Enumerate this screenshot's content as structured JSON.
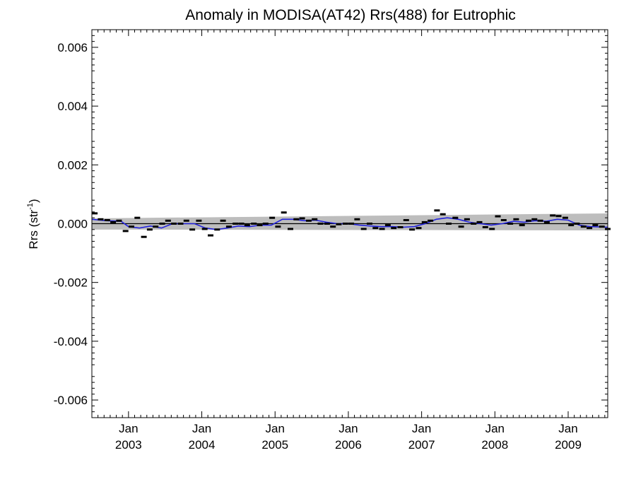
{
  "chart_data": {
    "type": "scatter",
    "title": "Anomaly in MODISA(AT42) Rrs(488) for Eutrophic",
    "ylabel": {
      "text": "Rrs (str",
      "superscript": "-1",
      "suffix": ")"
    },
    "xlabel": "",
    "xlim": [
      2002.5,
      2009.54
    ],
    "ylim": [
      -0.0066,
      0.0066
    ],
    "y_ticks": [
      "0.006",
      "0.004",
      "0.002",
      "0.000",
      "-0.002",
      "-0.004",
      "-0.006"
    ],
    "y_tick_values": [
      0.006,
      0.004,
      0.002,
      0.0,
      -0.002,
      -0.004,
      -0.006
    ],
    "x_ticks": [
      {
        "month": "Jan",
        "year": "2003",
        "value": 2003.0
      },
      {
        "month": "Jan",
        "year": "2004",
        "value": 2004.0
      },
      {
        "month": "Jan",
        "year": "2005",
        "value": 2005.0
      },
      {
        "month": "Jan",
        "year": "2006",
        "value": 2006.0
      },
      {
        "month": "Jan",
        "year": "2007",
        "value": 2007.0
      },
      {
        "month": "Jan",
        "year": "2008",
        "value": 2008.0
      },
      {
        "month": "Jan",
        "year": "2009",
        "value": 2009.0
      }
    ],
    "grid": false,
    "legend": "none",
    "colors": {
      "points": "#000000",
      "smooth_line": "#2222dd",
      "trend_band": "#bdbdbd",
      "zero_line": "#000000"
    },
    "series": [
      {
        "kind": "monthly_anomaly_points",
        "x": [
          2002.54,
          2002.62,
          2002.71,
          2002.79,
          2002.87,
          2002.96,
          2003.04,
          2003.12,
          2003.21,
          2003.29,
          2003.37,
          2003.46,
          2003.54,
          2003.62,
          2003.71,
          2003.79,
          2003.87,
          2003.96,
          2004.04,
          2004.12,
          2004.21,
          2004.29,
          2004.37,
          2004.46,
          2004.54,
          2004.62,
          2004.71,
          2004.79,
          2004.87,
          2004.96,
          2005.04,
          2005.12,
          2005.21,
          2005.29,
          2005.37,
          2005.46,
          2005.54,
          2005.62,
          2005.71,
          2005.79,
          2005.87,
          2005.96,
          2006.04,
          2006.12,
          2006.21,
          2006.29,
          2006.37,
          2006.46,
          2006.54,
          2006.62,
          2006.71,
          2006.79,
          2006.87,
          2006.96,
          2007.04,
          2007.12,
          2007.21,
          2007.29,
          2007.37,
          2007.46,
          2007.54,
          2007.62,
          2007.71,
          2007.79,
          2007.87,
          2007.96,
          2008.04,
          2008.12,
          2008.21,
          2008.29,
          2008.37,
          2008.46,
          2008.54,
          2008.62,
          2008.71,
          2008.79,
          2008.87,
          2008.96,
          2009.04,
          2009.12,
          2009.21,
          2009.29,
          2009.37,
          2009.46,
          2009.54
        ],
        "y": [
          0.00035,
          0.00015,
          0.00012,
          5e-05,
          0.0001,
          -0.00025,
          -0.0001,
          0.0002,
          -0.00045,
          -0.0002,
          -0.0001,
          0.0,
          0.0001,
          0.0,
          0.0,
          0.0001,
          -0.0002,
          0.0001,
          -0.00018,
          -0.0004,
          -0.0002,
          0.0001,
          -0.0001,
          0.0,
          0.0,
          -5e-05,
          0.0,
          -5e-05,
          0.0,
          0.0002,
          -0.0001,
          0.00038,
          -0.00018,
          0.00015,
          0.00018,
          0.0001,
          0.00015,
          0.0,
          0.0,
          -0.0001,
          -2e-05,
          0.0,
          0.0,
          0.00015,
          -0.00018,
          0.0,
          -0.00015,
          -0.00018,
          -5e-05,
          -0.00015,
          -0.00012,
          0.00012,
          -0.0002,
          -0.00015,
          5e-05,
          0.0001,
          0.00045,
          0.00032,
          0.0,
          0.0002,
          -0.0001,
          0.00015,
          0.0,
          5e-05,
          -0.00012,
          -0.00018,
          0.00025,
          0.00012,
          0.0,
          0.00015,
          -5e-05,
          0.0001,
          0.00015,
          0.0001,
          5e-05,
          0.00028,
          0.00026,
          0.0002,
          -5e-05,
          0.0,
          -0.0001,
          -0.00015,
          -5e-05,
          -0.0001,
          -0.00018
        ]
      },
      {
        "kind": "smoothed_line",
        "x": [
          2002.5,
          2002.7,
          2002.9,
          2003.0,
          2003.15,
          2003.3,
          2003.45,
          2003.6,
          2003.75,
          2003.9,
          2004.05,
          2004.2,
          2004.35,
          2004.5,
          2004.65,
          2004.8,
          2004.95,
          2005.1,
          2005.25,
          2005.4,
          2005.55,
          2005.7,
          2005.85,
          2006.0,
          2006.15,
          2006.3,
          2006.45,
          2006.6,
          2006.75,
          2006.9,
          2007.05,
          2007.2,
          2007.35,
          2007.5,
          2007.65,
          2007.8,
          2007.95,
          2008.1,
          2008.25,
          2008.4,
          2008.55,
          2008.7,
          2008.85,
          2009.0,
          2009.15,
          2009.3,
          2009.54
        ],
        "y": [
          0.00015,
          0.0001,
          8e-05,
          -0.0001,
          -0.00015,
          -8e-05,
          -0.00015,
          0.0,
          0.0,
          0.0,
          -0.00015,
          -0.0002,
          -0.00015,
          -8e-05,
          -0.0001,
          -5e-05,
          -5e-05,
          0.00015,
          0.00015,
          0.0001,
          0.00012,
          5e-05,
          0.0,
          0.0,
          -5e-05,
          -8e-05,
          -0.0001,
          -0.0001,
          -0.00012,
          -0.0001,
          0.0,
          0.00015,
          0.0002,
          0.00015,
          5e-05,
          0.0,
          -5e-05,
          0.0,
          8e-05,
          5e-05,
          0.0001,
          8e-05,
          0.00015,
          0.00012,
          -5e-05,
          -0.0001,
          -0.00012
        ]
      },
      {
        "kind": "trend_band",
        "x": [
          2002.5,
          2009.54
        ],
        "upper": [
          0.00018,
          0.00035
        ],
        "lower": [
          -0.0002,
          -0.00023
        ]
      }
    ]
  }
}
